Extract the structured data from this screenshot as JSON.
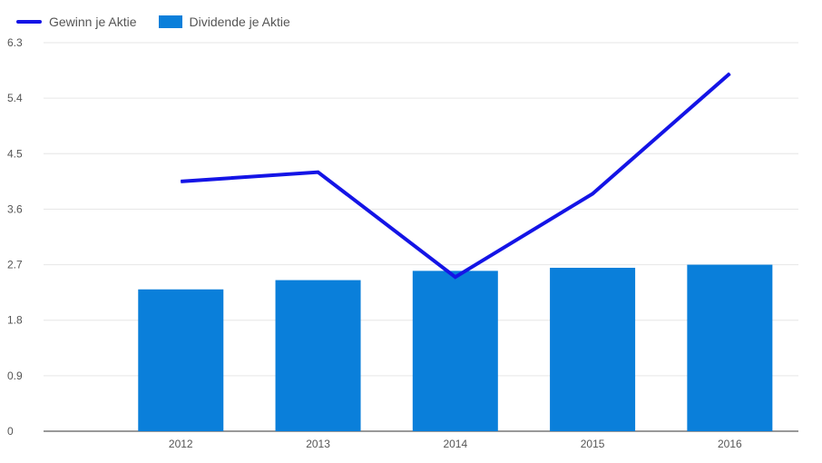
{
  "colors": {
    "line": "#1414E6",
    "bar": "#0A7FDA",
    "grid": "#E6E6E6",
    "axis": "#333333",
    "text": "#555555"
  },
  "legend": {
    "line_label": "Gewinn je Aktie",
    "bar_label": "Dividende je Aktie"
  },
  "chart_data": {
    "type": "bar",
    "categories": [
      "2012",
      "2013",
      "2014",
      "2015",
      "2016"
    ],
    "series": [
      {
        "name": "Dividende je Aktie",
        "type": "bar",
        "values": [
          2.3,
          2.45,
          2.6,
          2.65,
          2.7
        ]
      },
      {
        "name": "Gewinn je Aktie",
        "type": "line",
        "values": [
          4.05,
          4.2,
          2.5,
          3.85,
          5.8
        ]
      }
    ],
    "yticks": [
      "6.3",
      "5.4",
      "4.5",
      "3.6",
      "2.7",
      "1.8",
      "0.9",
      "0"
    ],
    "ylim": [
      0,
      6.3
    ],
    "grid": true,
    "legend_position": "top-left"
  }
}
